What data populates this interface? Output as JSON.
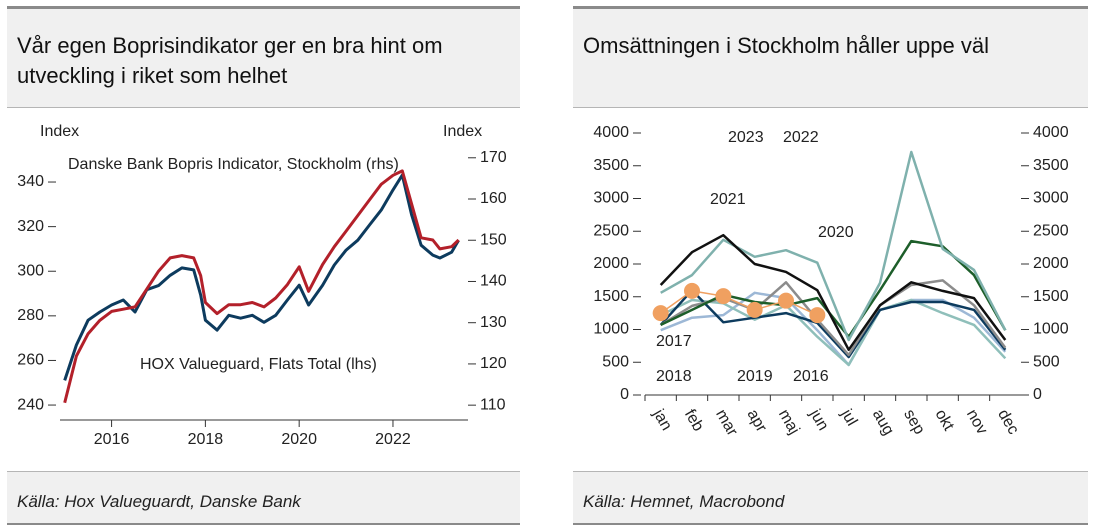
{
  "chart_data": [
    {
      "type": "line",
      "title": "Vår egen Boprisindikator ger en bra hint om utveckling i riket som helhet",
      "source": "Källa: Hox Valueguardt, Danske Bank",
      "ylabel": "Index",
      "y2label": "Index",
      "x": [
        2015.0,
        2015.25,
        2015.5,
        2015.75,
        2016.0,
        2016.25,
        2016.5,
        2016.75,
        2017.0,
        2017.25,
        2017.5,
        2017.75,
        2017.9,
        2018.0,
        2018.25,
        2018.5,
        2018.75,
        2019.0,
        2019.25,
        2019.5,
        2019.75,
        2020.0,
        2020.2,
        2020.5,
        2020.75,
        2021.0,
        2021.25,
        2021.5,
        2021.75,
        2022.0,
        2022.2,
        2022.4,
        2022.6,
        2022.85,
        2023.0,
        2023.25,
        2023.4
      ],
      "xlim": [
        2014.9,
        2023.6
      ],
      "xticks": [
        2016,
        2018,
        2020,
        2022
      ],
      "ylim": [
        233.3,
        356.6
      ],
      "yticks": [
        240,
        260,
        280,
        300,
        320,
        340
      ],
      "y2lim": [
        106.4,
        173.1
      ],
      "y2ticks": [
        110,
        120,
        130,
        140,
        150,
        160,
        170
      ],
      "series": [
        {
          "name": "Danske Bank Bopris Indicator, Stockholm (rhs)",
          "color": "#0d3b5e",
          "axis": "y2",
          "values": [
            116,
            124.6,
            130.6,
            132.6,
            134.3,
            135.5,
            132.6,
            138,
            139,
            141.5,
            143.3,
            142.8,
            136.7,
            130.6,
            128.2,
            131.8,
            131.1,
            131.8,
            130.1,
            131.8,
            135.5,
            139.1,
            134.3,
            139.1,
            144,
            147.6,
            150,
            153.7,
            157.3,
            162.2,
            165.8,
            156.1,
            148.8,
            146.4,
            145.7,
            147.1,
            150
          ]
        },
        {
          "name": "HOX Valueguard, Flats Total (lhs)",
          "color": "#b3202a",
          "values": [
            241,
            262,
            272,
            278,
            282,
            283,
            284,
            292,
            300,
            306,
            307,
            306,
            298,
            286,
            281,
            285,
            285,
            286,
            284,
            288,
            294,
            302,
            291,
            303,
            311,
            318,
            325,
            332,
            339,
            343,
            345,
            330,
            315,
            314,
            310,
            311,
            314
          ]
        }
      ]
    },
    {
      "type": "line",
      "title": "Omsättningen i Stockholm håller uppe väl",
      "source": "Källa: Hemnet, Macrobond",
      "categories": [
        "jan",
        "feb",
        "mar",
        "apr",
        "maj",
        "jun",
        "jul",
        "aug",
        "sep",
        "okt",
        "nov",
        "dec"
      ],
      "ylim": [
        0,
        4000
      ],
      "yticks": [
        0,
        500,
        1000,
        1500,
        2000,
        2500,
        3000,
        3500,
        4000
      ],
      "y2lim": [
        0,
        4000
      ],
      "y2ticks": [
        0,
        500,
        1000,
        1500,
        2000,
        2500,
        3000,
        3500,
        4000
      ],
      "series": [
        {
          "name": "2016",
          "color": "#9db8d6",
          "values": [
            990,
            1180,
            1220,
            1560,
            1480,
            990,
            460,
            1300,
            1450,
            1450,
            1180,
            660
          ]
        },
        {
          "name": "2017",
          "color": "#8fbfba",
          "values": [
            1220,
            1450,
            1400,
            1150,
            1370,
            890,
            460,
            1300,
            1450,
            1250,
            1070,
            560
          ]
        },
        {
          "name": "2018",
          "color": "#0d3b5e",
          "values": [
            1070,
            1600,
            1110,
            1180,
            1250,
            1100,
            580,
            1300,
            1420,
            1420,
            1300,
            690
          ]
        },
        {
          "name": "2019",
          "color": "#8c8c8c",
          "values": [
            1070,
            1360,
            1480,
            1300,
            1720,
            1150,
            610,
            1370,
            1680,
            1750,
            1370,
            720
          ]
        },
        {
          "name": "2020",
          "color": "#1d5e2a",
          "values": [
            1070,
            1300,
            1530,
            1420,
            1370,
            1480,
            890,
            1600,
            2350,
            2270,
            1830,
            990
          ]
        },
        {
          "name": "2021",
          "color": "#7fb1ad",
          "values": [
            1560,
            1830,
            2370,
            2110,
            2210,
            2020,
            840,
            1710,
            3710,
            2230,
            1910,
            990
          ]
        },
        {
          "name": "2022",
          "color": "#111111",
          "values": [
            1680,
            2180,
            2440,
            2000,
            1880,
            1600,
            690,
            1370,
            1720,
            1590,
            1480,
            840
          ]
        },
        {
          "name": "2023",
          "color": "#f0a060",
          "markers": true,
          "values": [
            1250,
            1590,
            1510,
            1300,
            1440,
            1220,
            null,
            null,
            null,
            null,
            null,
            null
          ]
        }
      ]
    }
  ]
}
